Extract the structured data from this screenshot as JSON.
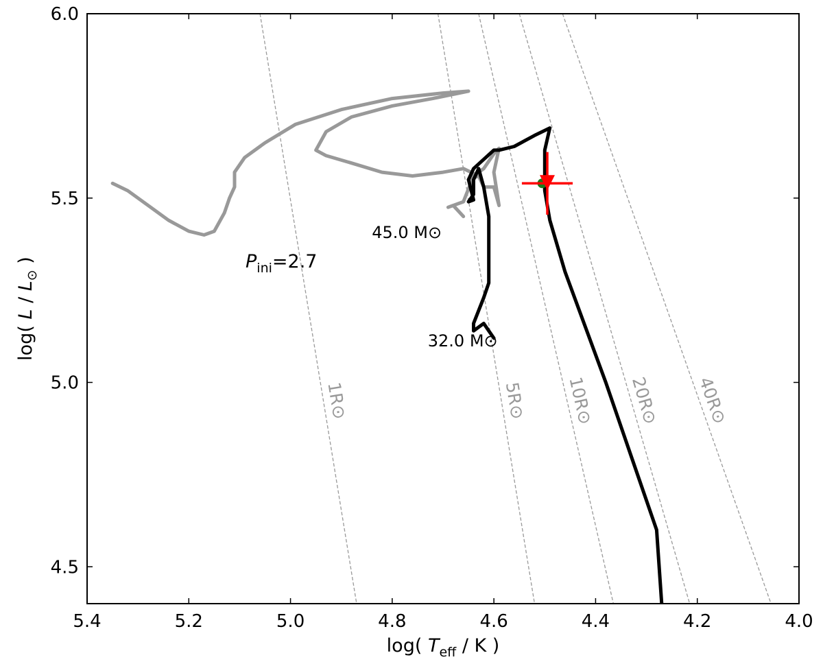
{
  "chart_data": {
    "type": "line",
    "xlabel": {
      "pre": "log( ",
      "var": "T",
      "sub": "eff",
      "post": " / K )"
    },
    "ylabel": {
      "pre": "log( ",
      "var": "L",
      "mid": " / ",
      "var2": "L",
      "sub": "⊙",
      "post": " )"
    },
    "xlim": [
      5.4,
      4.0
    ],
    "ylim": [
      4.4,
      6.0
    ],
    "x_ticks": [
      5.4,
      5.2,
      5.0,
      4.8,
      4.6,
      4.4,
      4.2,
      4.0
    ],
    "x_tick_labels": [
      "5.4",
      "5.2",
      "5.0",
      "4.8",
      "4.6",
      "4.4",
      "4.2",
      "4.0"
    ],
    "y_ticks": [
      4.5,
      5.0,
      5.5,
      6.0
    ],
    "y_tick_labels": [
      "4.5",
      "5.0",
      "5.5",
      "6.0"
    ],
    "grid": false,
    "annotation": {
      "var": "P",
      "sub": "ini",
      "text": "=2.7"
    },
    "isoradii": [
      {
        "label": "1R⊙",
        "points": [
          [
            5.06,
            6.0
          ],
          [
            4.87,
            4.4
          ]
        ]
      },
      {
        "label": "5R⊙",
        "points": [
          [
            4.71,
            6.0
          ],
          [
            4.52,
            4.4
          ]
        ]
      },
      {
        "label": "10R⊙",
        "points": [
          [
            4.63,
            6.0
          ],
          [
            4.365,
            4.4
          ]
        ]
      },
      {
        "label": "20R⊙",
        "points": [
          [
            4.55,
            6.0
          ],
          [
            4.215,
            4.4
          ]
        ]
      },
      {
        "label": "40R⊙",
        "points": [
          [
            4.465,
            6.0
          ],
          [
            4.055,
            4.4
          ]
        ]
      }
    ],
    "series": [
      {
        "label": "45.0 M⊙",
        "color": "#999999",
        "points": [
          [
            5.35,
            5.54
          ],
          [
            5.32,
            5.52
          ],
          [
            5.28,
            5.48
          ],
          [
            5.24,
            5.44
          ],
          [
            5.2,
            5.41
          ],
          [
            5.17,
            5.4
          ],
          [
            5.15,
            5.41
          ],
          [
            5.13,
            5.46
          ],
          [
            5.12,
            5.5
          ],
          [
            5.11,
            5.53
          ],
          [
            5.11,
            5.57
          ],
          [
            5.09,
            5.61
          ],
          [
            5.05,
            5.65
          ],
          [
            4.99,
            5.7
          ],
          [
            4.9,
            5.74
          ],
          [
            4.8,
            5.77
          ],
          [
            4.7,
            5.785
          ],
          [
            4.65,
            5.79
          ],
          [
            4.72,
            5.77
          ],
          [
            4.8,
            5.75
          ],
          [
            4.88,
            5.72
          ],
          [
            4.93,
            5.68
          ],
          [
            4.95,
            5.63
          ],
          [
            4.93,
            5.615
          ],
          [
            4.88,
            5.595
          ],
          [
            4.82,
            5.57
          ],
          [
            4.76,
            5.56
          ],
          [
            4.7,
            5.57
          ],
          [
            4.66,
            5.58
          ],
          [
            4.63,
            5.56
          ],
          [
            4.65,
            5.55
          ],
          [
            4.62,
            5.58
          ],
          [
            4.6,
            5.62
          ],
          [
            4.59,
            5.635
          ],
          [
            4.6,
            5.57
          ],
          [
            4.59,
            5.48
          ],
          [
            4.6,
            5.53
          ],
          [
            4.62,
            5.53
          ],
          [
            4.63,
            5.56
          ],
          [
            4.64,
            5.56
          ],
          [
            4.66,
            5.49
          ],
          [
            4.69,
            5.475
          ],
          [
            4.68,
            5.48
          ],
          [
            4.66,
            5.45
          ]
        ]
      },
      {
        "label": "32.0 M⊙",
        "color": "#000000",
        "points": [
          [
            4.6,
            5.12
          ],
          [
            4.61,
            5.14
          ],
          [
            4.62,
            5.16
          ],
          [
            4.64,
            5.14
          ],
          [
            4.64,
            5.16
          ],
          [
            4.62,
            5.23
          ],
          [
            4.61,
            5.27
          ],
          [
            4.61,
            5.35
          ],
          [
            4.61,
            5.45
          ],
          [
            4.62,
            5.53
          ],
          [
            4.63,
            5.58
          ],
          [
            4.64,
            5.55
          ],
          [
            4.64,
            5.51
          ],
          [
            4.65,
            5.49
          ],
          [
            4.64,
            5.495
          ],
          [
            4.65,
            5.55
          ],
          [
            4.64,
            5.58
          ],
          [
            4.6,
            5.63
          ],
          [
            4.59,
            5.63
          ],
          [
            4.56,
            5.64
          ],
          [
            4.52,
            5.67
          ],
          [
            4.49,
            5.69
          ],
          [
            4.5,
            5.63
          ],
          [
            4.5,
            5.52
          ],
          [
            4.49,
            5.44
          ],
          [
            4.46,
            5.3
          ],
          [
            4.42,
            5.15
          ],
          [
            4.38,
            5.0
          ],
          [
            4.33,
            4.8
          ],
          [
            4.28,
            4.6
          ],
          [
            4.27,
            4.4
          ]
        ]
      }
    ],
    "points": [
      {
        "name": "green-dot",
        "x": 4.505,
        "y": 5.54,
        "color": "#1a7a1a"
      },
      {
        "name": "red-marker",
        "x": 4.495,
        "y": 5.54,
        "xerr": 0.05,
        "yerr_up": 0.085,
        "yerr_down": 0.085,
        "color": "#ff0000",
        "marker": "triangle-down"
      }
    ]
  }
}
